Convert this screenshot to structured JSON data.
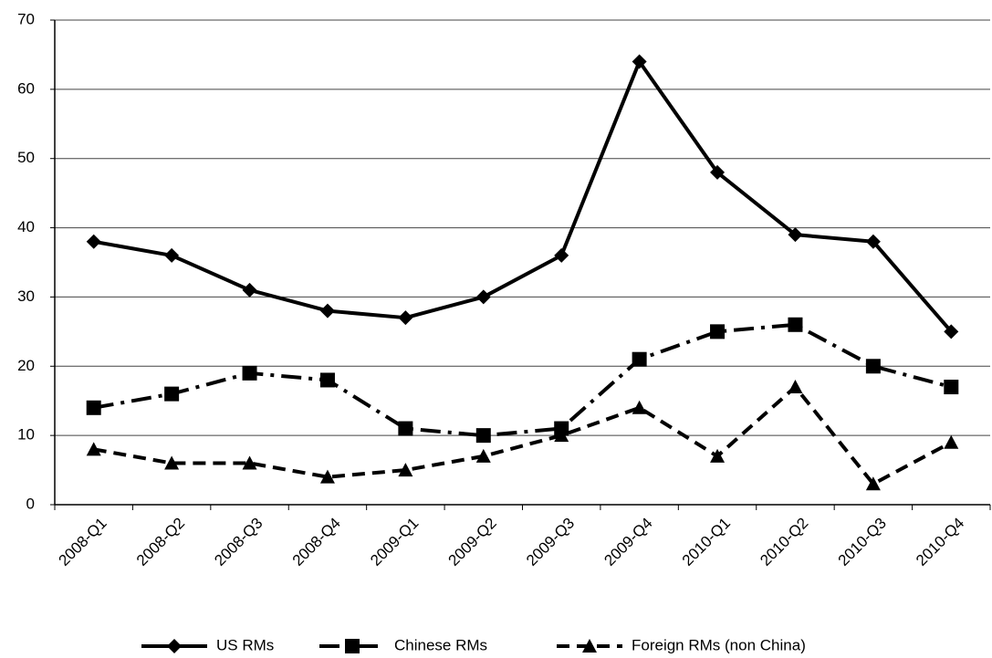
{
  "chart_data": {
    "type": "line",
    "categories": [
      "2008-Q1",
      "2008-Q2",
      "2008-Q3",
      "2008-Q4",
      "2009-Q1",
      "2009-Q2",
      "2009-Q3",
      "2009-Q4",
      "2010-Q1",
      "2010-Q2",
      "2010-Q3",
      "2010-Q4"
    ],
    "series": [
      {
        "name": "US RMs",
        "color": "#000000",
        "line_style": "solid",
        "marker": "diamond",
        "values": [
          38,
          36,
          31,
          28,
          27,
          30,
          36,
          64,
          48,
          39,
          38,
          25
        ]
      },
      {
        "name": "Chinese RMs",
        "color": "#000000",
        "line_style": "dashdot",
        "marker": "square",
        "values": [
          14,
          16,
          19,
          18,
          11,
          10,
          11,
          21,
          25,
          26,
          20,
          17
        ]
      },
      {
        "name": "Foreign RMs (non China)",
        "color": "#000000",
        "line_style": "dashed",
        "marker": "triangle",
        "values": [
          8,
          6,
          6,
          4,
          5,
          7,
          10,
          14,
          7,
          17,
          3,
          9
        ]
      }
    ],
    "ylim": [
      0,
      70
    ],
    "yticks": [
      0,
      10,
      20,
      30,
      40,
      50,
      60,
      70
    ],
    "grid": true,
    "legend": "bottom"
  }
}
